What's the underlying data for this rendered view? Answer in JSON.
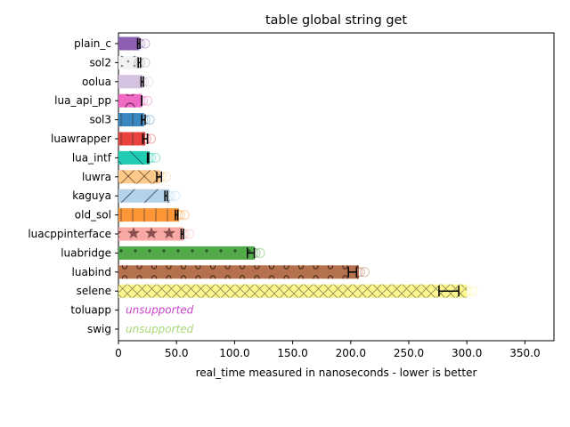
{
  "chart_data": {
    "type": "bar",
    "orientation": "horizontal",
    "title": "table global string get",
    "xlabel": "real_time measured in nanoseconds - lower is better",
    "ylabel": "",
    "xlim": [
      0,
      375
    ],
    "xticks": [
      "0",
      "50.0",
      "100.0",
      "150.0",
      "200.0",
      "250.0",
      "300.0",
      "350.0"
    ],
    "xtick_values": [
      0,
      50,
      100,
      150,
      200,
      250,
      300,
      350
    ],
    "grid": false,
    "categories": [
      "plain_c",
      "sol2",
      "oolua",
      "lua_api_pp",
      "sol3",
      "luawrapper",
      "lua_intf",
      "luwra",
      "kaguya",
      "old_sol",
      "luacppinterface",
      "luabridge",
      "luabind",
      "selene",
      "toluapp",
      "swig"
    ],
    "series": [
      {
        "category": "plain_c",
        "value": 18,
        "err_low": 16.5,
        "err_high": 18.5,
        "color": "#8c5fb0",
        "hatch": "none",
        "supported": true
      },
      {
        "category": "sol2",
        "value": 18,
        "err_low": 17,
        "err_high": 19,
        "color": "#f2f2f2",
        "hatch": "dots",
        "supported": true
      },
      {
        "category": "oolua",
        "value": 21,
        "err_low": 19.5,
        "err_high": 21.5,
        "color": "#d4c2e0",
        "hatch": "none",
        "supported": true
      },
      {
        "category": "lua_api_pp",
        "value": 20,
        "err_low": 20,
        "err_high": 20,
        "color": "#ee68c4",
        "hatch": "circles",
        "supported": true
      },
      {
        "category": "sol3",
        "value": 22,
        "err_low": 20,
        "err_high": 23,
        "color": "#3a87c0",
        "hatch": "vlines",
        "supported": true
      },
      {
        "category": "luawrapper",
        "value": 23,
        "err_low": 21,
        "err_high": 25,
        "color": "#e8413e",
        "hatch": "vlines",
        "supported": true
      },
      {
        "category": "lua_intf",
        "value": 27,
        "err_low": 25,
        "err_high": 26,
        "color": "#21cdb2",
        "hatch": "backslash",
        "supported": true
      },
      {
        "category": "luwra",
        "value": 36,
        "err_low": 33,
        "err_high": 37,
        "color": "#fcc98a",
        "hatch": "diagcross",
        "supported": true
      },
      {
        "category": "kaguya",
        "value": 44,
        "err_low": 40,
        "err_high": 42,
        "color": "#b2d3ea",
        "hatch": "slash",
        "supported": true
      },
      {
        "category": "old_sol",
        "value": 52,
        "err_low": 49,
        "err_high": 51,
        "color": "#fc9636",
        "hatch": "vlines",
        "supported": true
      },
      {
        "category": "luacppinterface",
        "value": 56,
        "err_low": 54,
        "err_high": 56,
        "color": "#f8a8a5",
        "hatch": "stars",
        "supported": true
      },
      {
        "category": "luabridge",
        "value": 117,
        "err_low": 111,
        "err_high": 117,
        "color": "#52aa4b",
        "hatch": "smalldots",
        "supported": true
      },
      {
        "category": "luabind",
        "value": 207,
        "err_low": 198,
        "err_high": 205,
        "color": "#b5704d",
        "hatch": "rings",
        "supported": true
      },
      {
        "category": "selene",
        "value": 300,
        "err_low": 276,
        "err_high": 293,
        "color": "#fdf68f",
        "hatch": "crosshatch",
        "supported": true
      },
      {
        "category": "toluapp",
        "value": 0,
        "supported": false,
        "label": "unsupported",
        "label_color": "#cc44cc"
      },
      {
        "category": "swig",
        "value": 0,
        "supported": false,
        "label": "unsupported",
        "label_color": "#a8d878"
      }
    ]
  }
}
